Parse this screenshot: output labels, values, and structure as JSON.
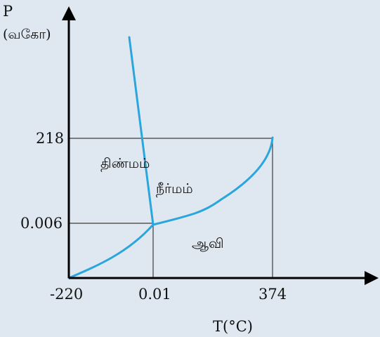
{
  "diagram": {
    "y_axis": {
      "symbol": "P",
      "unit": "(வகோ)"
    },
    "x_axis": {
      "label": "T(°C)"
    },
    "y_ticks": [
      "218",
      "0.006"
    ],
    "x_ticks": [
      "-220",
      "0.01",
      "374"
    ],
    "regions": {
      "solid": "திண்மம்",
      "liquid": "நீர்மம்",
      "vapour": "ஆவி"
    },
    "colors": {
      "background": "#dfe8f1",
      "curve": "#2aa6dc",
      "axis": "#000000",
      "reference_lines": "#3d3d3d"
    }
  }
}
